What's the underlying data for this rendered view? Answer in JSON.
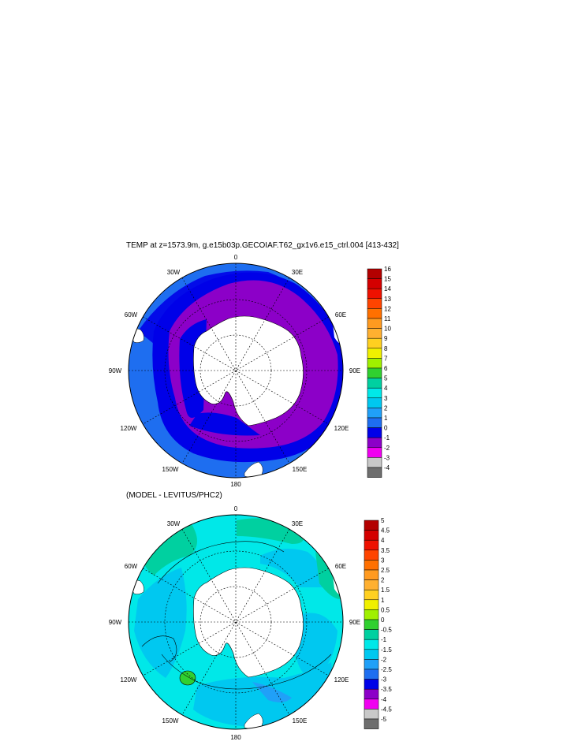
{
  "panel1": {
    "title": "TEMP at z=1573.9m, g.e15b03p.GECOIAF.T62_gx1v6.e15_ctrl.004 [413-432]",
    "lon_labels": [
      "0",
      "30E",
      "60E",
      "90E",
      "120E",
      "150E",
      "180",
      "150W",
      "120W",
      "90W",
      "60W",
      "30W"
    ],
    "colorbar": {
      "labels": [
        "16",
        "15",
        "14",
        "13",
        "12",
        "11",
        "10",
        "9",
        "8",
        "7",
        "6",
        "5",
        "4",
        "3",
        "2",
        "1",
        "0",
        "-1",
        "-2",
        "-3",
        "-4"
      ],
      "colors": [
        "#b30000",
        "#d40000",
        "#ee1100",
        "#ff4400",
        "#ff7000",
        "#ff9a20",
        "#ffb030",
        "#ffd020",
        "#f0f000",
        "#a0f000",
        "#30d030",
        "#00d0a0",
        "#00e8e8",
        "#00c8f0",
        "#20a0f8",
        "#1e6ef0",
        "#0000e8",
        "#8c00c8",
        "#f000f0",
        "#c8c8c8",
        "#6e6e6e"
      ]
    }
  },
  "panel2": {
    "title": "(MODEL - LEVITUS/PHC2)",
    "lon_labels": [
      "0",
      "30E",
      "60E",
      "90E",
      "120E",
      "150E",
      "180",
      "150W",
      "120W",
      "90W",
      "60W",
      "30W"
    ],
    "colorbar": {
      "labels": [
        "5",
        "4.5",
        "4",
        "3.5",
        "3",
        "2.5",
        "2",
        "1.5",
        "1",
        "0.5",
        "0",
        "-0.5",
        "-1",
        "-1.5",
        "-2",
        "-2.5",
        "-3",
        "-3.5",
        "-4",
        "-4.5",
        "-5"
      ],
      "colors": [
        "#b30000",
        "#d40000",
        "#ee1100",
        "#ff4400",
        "#ff7000",
        "#ff9a20",
        "#ffb030",
        "#ffd020",
        "#f0f000",
        "#a0f000",
        "#30d030",
        "#00d0a0",
        "#00e8e8",
        "#00c8f0",
        "#20a0f8",
        "#1e6ef0",
        "#0000e8",
        "#8c00c8",
        "#f000f0",
        "#c8c8c8",
        "#6e6e6e"
      ]
    }
  }
}
